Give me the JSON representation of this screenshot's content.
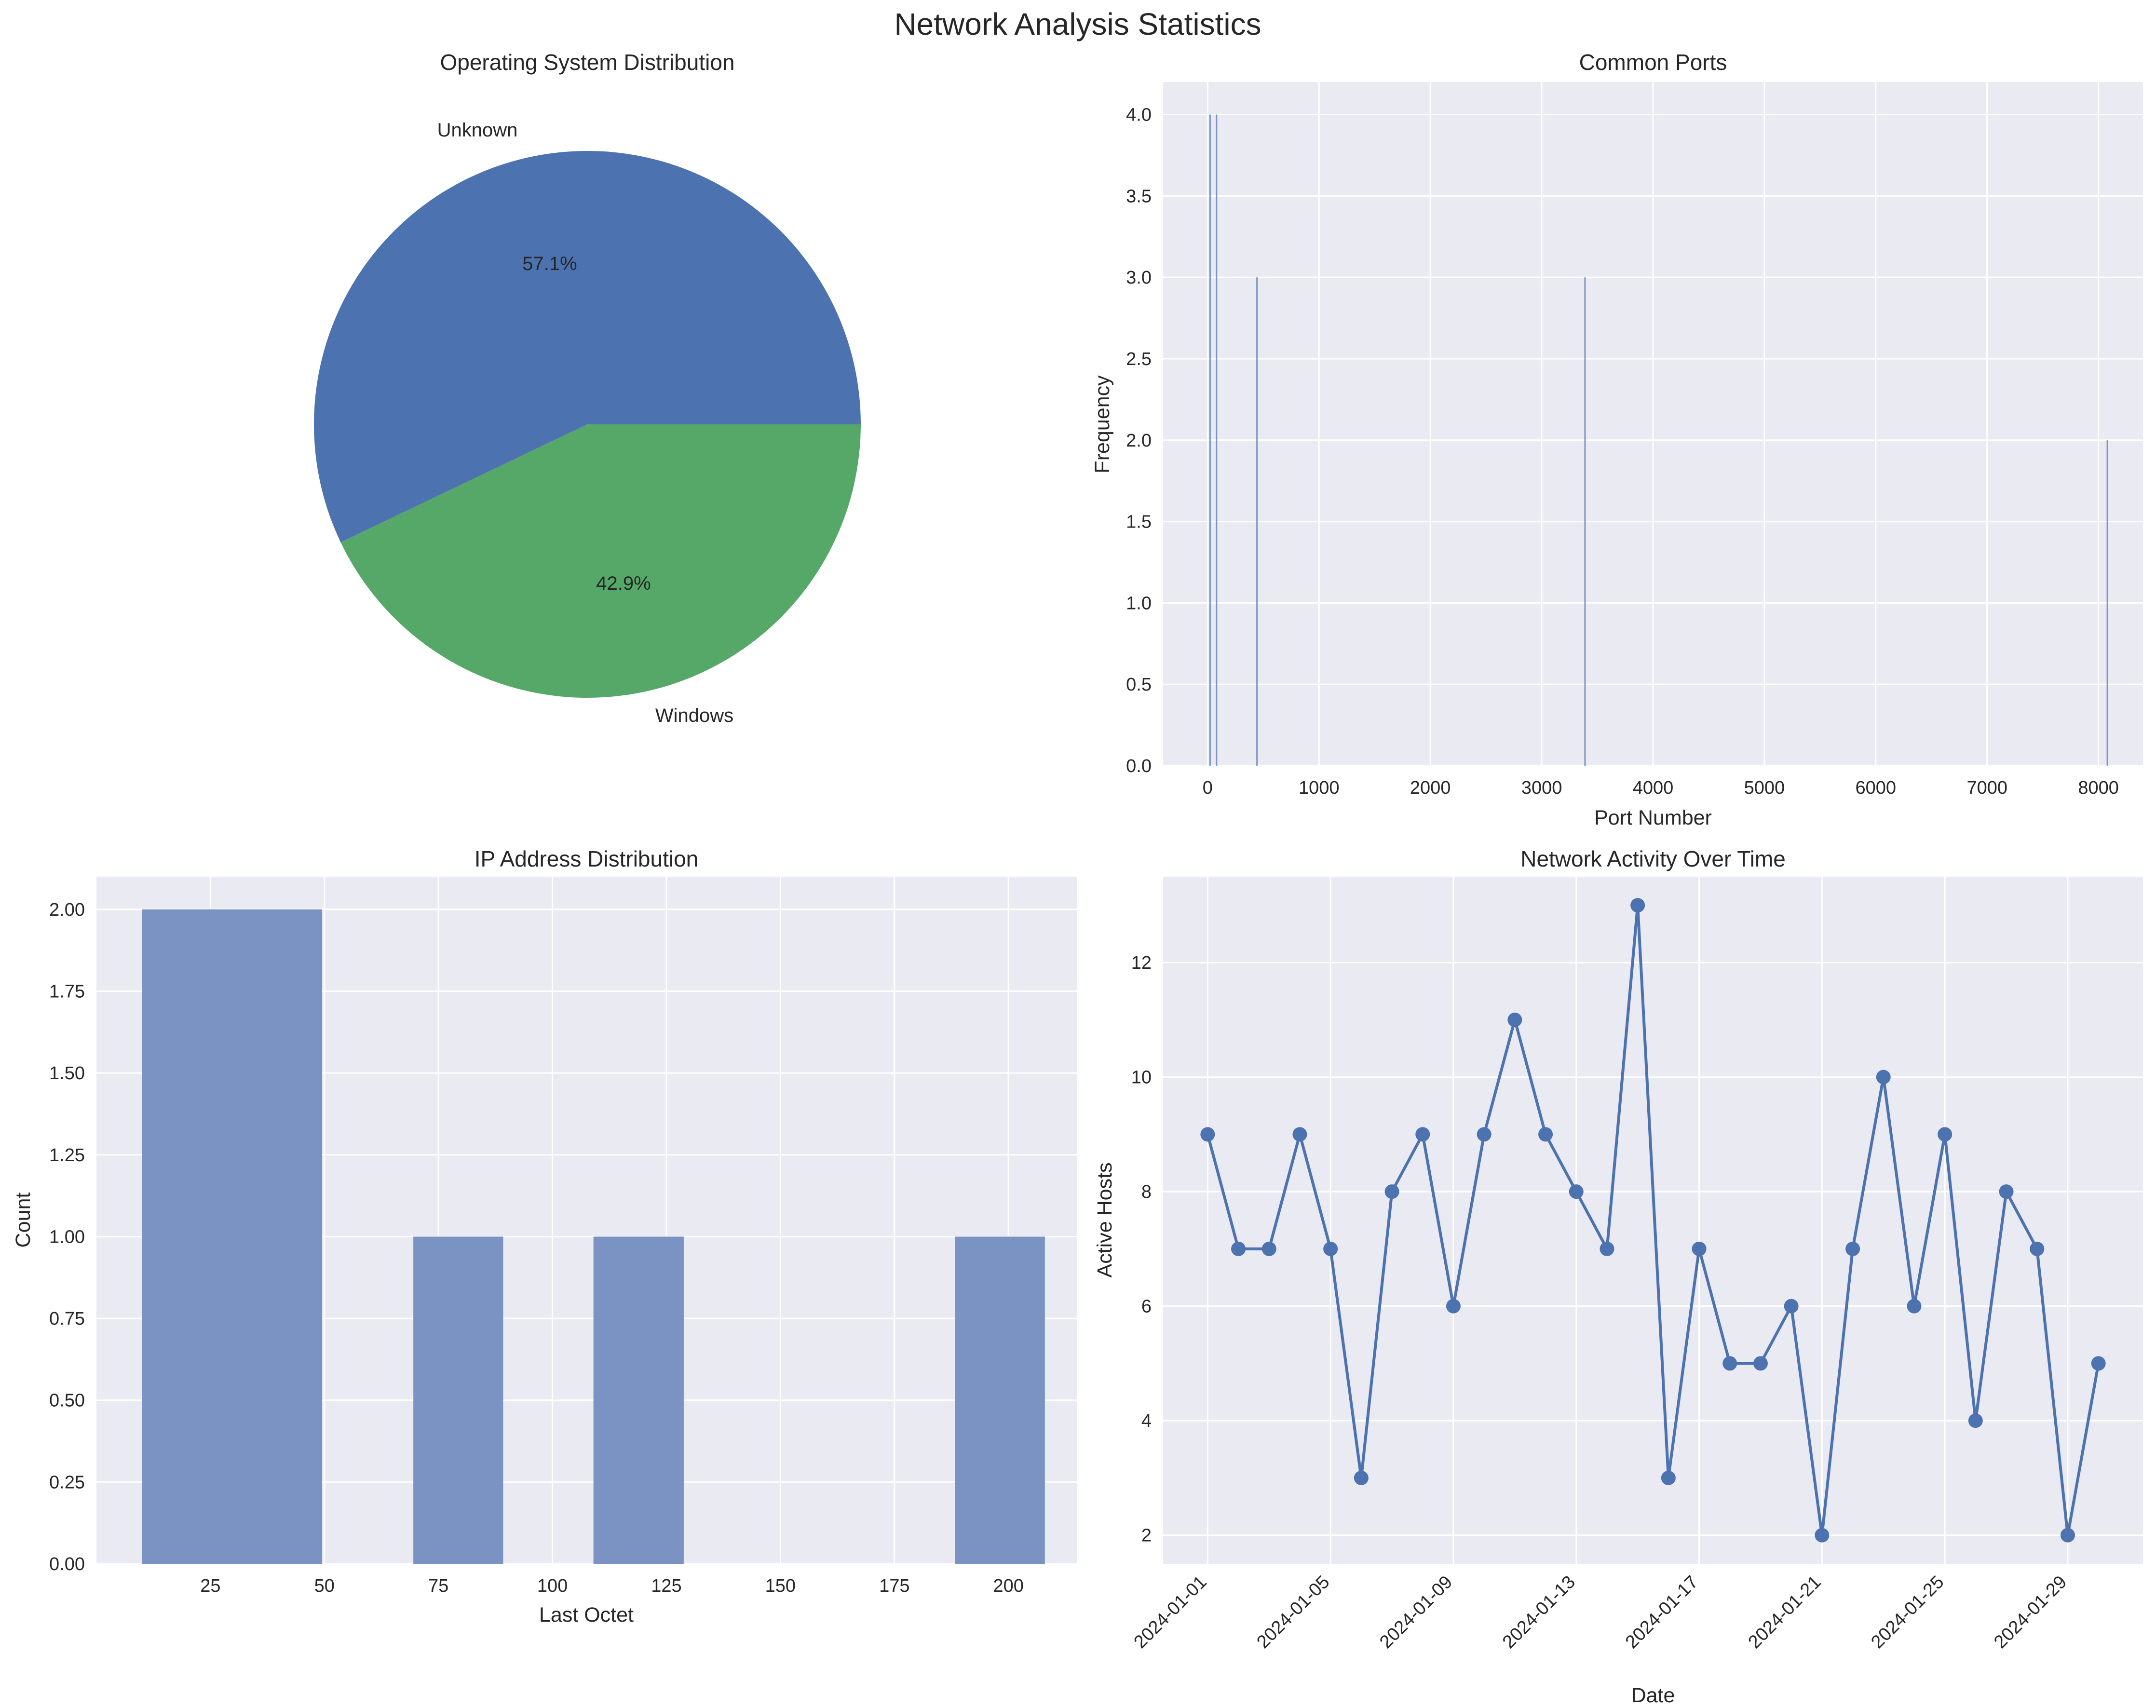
{
  "figure": {
    "title": "Network Analysis Statistics",
    "colors": {
      "panel_bg": "#EAEAF2",
      "grid": "#FFFFFF",
      "blue": "#4C72B0",
      "green": "#55A868",
      "hist_bar": "#7A93C2"
    }
  },
  "chart_data": [
    {
      "type": "pie",
      "title": "Operating System Distribution",
      "labels": [
        "Unknown",
        "Windows"
      ],
      "values": [
        57.1,
        42.9
      ],
      "autopct": [
        "57.1%",
        "42.9%"
      ],
      "colors": [
        "#4C72B0",
        "#55A868"
      ]
    },
    {
      "type": "bar",
      "title": "Common Ports",
      "xlabel": "Port Number",
      "ylabel": "Frequency",
      "xlim": [
        -400,
        8400
      ],
      "ylim": [
        0,
        4.2
      ],
      "xticks": [
        0,
        1000,
        2000,
        3000,
        4000,
        5000,
        6000,
        7000,
        8000
      ],
      "yticks": [
        "0.0",
        "0.5",
        "1.0",
        "1.5",
        "2.0",
        "2.5",
        "3.0",
        "3.5",
        "4.0"
      ],
      "x": [
        22,
        80,
        443,
        3389,
        8080
      ],
      "values": [
        4,
        4,
        3,
        3,
        2
      ],
      "grid": true
    },
    {
      "type": "bar",
      "title": "IP Address Distribution",
      "xlabel": "Last Octet",
      "ylabel": "Count",
      "xlim": [
        0,
        215
      ],
      "ylim": [
        0,
        2.1
      ],
      "xticks": [
        25,
        50,
        75,
        100,
        125,
        150,
        175,
        200
      ],
      "yticks": [
        "0.00",
        "0.25",
        "0.50",
        "0.75",
        "1.00",
        "1.25",
        "1.50",
        "1.75",
        "2.00"
      ],
      "bins": [
        {
          "start": 10,
          "end": 49.5,
          "count": 2
        },
        {
          "start": 69.5,
          "end": 89.2,
          "count": 1
        },
        {
          "start": 109,
          "end": 128.8,
          "count": 1
        },
        {
          "start": 188.3,
          "end": 208,
          "count": 1
        }
      ],
      "grid": true
    },
    {
      "type": "line",
      "title": "Network Activity Over Time",
      "xlabel": "Date",
      "ylabel": "Active Hosts",
      "ylim": [
        1.5,
        13.5
      ],
      "yticks": [
        2,
        4,
        6,
        8,
        10,
        12
      ],
      "xticks": [
        "2024-01-01",
        "2024-01-05",
        "2024-01-09",
        "2024-01-13",
        "2024-01-17",
        "2024-01-21",
        "2024-01-25",
        "2024-01-29"
      ],
      "x": [
        "2024-01-01",
        "2024-01-02",
        "2024-01-03",
        "2024-01-04",
        "2024-01-05",
        "2024-01-06",
        "2024-01-07",
        "2024-01-08",
        "2024-01-09",
        "2024-01-10",
        "2024-01-11",
        "2024-01-12",
        "2024-01-13",
        "2024-01-14",
        "2024-01-15",
        "2024-01-16",
        "2024-01-17",
        "2024-01-18",
        "2024-01-19",
        "2024-01-20",
        "2024-01-21",
        "2024-01-22",
        "2024-01-23",
        "2024-01-24",
        "2024-01-25",
        "2024-01-26",
        "2024-01-27",
        "2024-01-28",
        "2024-01-29",
        "2024-01-30"
      ],
      "values": [
        9,
        7,
        7,
        9,
        7,
        3,
        8,
        9,
        6,
        9,
        11,
        9,
        8,
        7,
        13,
        3,
        7,
        5,
        5,
        6,
        2,
        7,
        10,
        6,
        9,
        4,
        8,
        7,
        2,
        5
      ],
      "grid": true
    }
  ]
}
